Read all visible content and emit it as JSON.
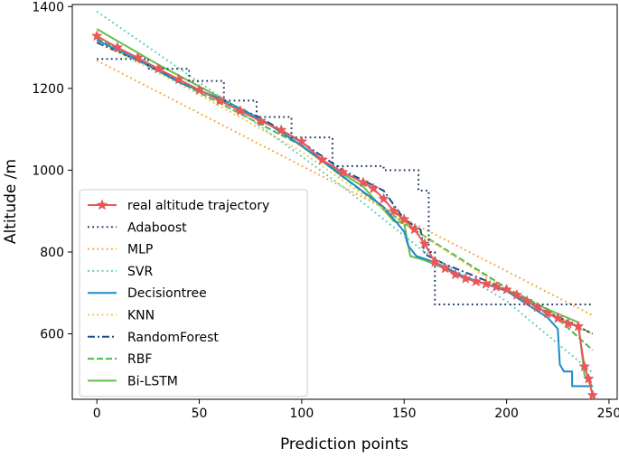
{
  "chart_data": {
    "type": "line",
    "title": "",
    "xlabel": "Prediction points",
    "ylabel": "Altitude /m",
    "xlim": [
      -12,
      254
    ],
    "ylim": [
      440,
      1405
    ],
    "xticks": [
      0,
      50,
      100,
      150,
      200,
      250
    ],
    "yticks": [
      600,
      800,
      1000,
      1200,
      1400
    ],
    "grid": false,
    "legend_position": "lower-left",
    "series": [
      {
        "name": "real altitude trajectory",
        "color": "#e8575a",
        "style": "solid-star",
        "points": [
          [
            0,
            1328
          ],
          [
            10,
            1300
          ],
          [
            20,
            1275
          ],
          [
            30,
            1248
          ],
          [
            40,
            1222
          ],
          [
            50,
            1196
          ],
          [
            60,
            1170
          ],
          [
            70,
            1145
          ],
          [
            80,
            1120
          ],
          [
            90,
            1098
          ],
          [
            100,
            1070
          ],
          [
            110,
            1025
          ],
          [
            120,
            995
          ],
          [
            130,
            970
          ],
          [
            135,
            955
          ],
          [
            140,
            930
          ],
          [
            145,
            900
          ],
          [
            150,
            880
          ],
          [
            155,
            855
          ],
          [
            160,
            820
          ],
          [
            165,
            775
          ],
          [
            170,
            760
          ],
          [
            175,
            745
          ],
          [
            180,
            735
          ],
          [
            185,
            728
          ],
          [
            190,
            722
          ],
          [
            195,
            715
          ],
          [
            200,
            708
          ],
          [
            205,
            695
          ],
          [
            210,
            680
          ],
          [
            215,
            665
          ],
          [
            220,
            650
          ],
          [
            225,
            638
          ],
          [
            230,
            625
          ],
          [
            235,
            618
          ],
          [
            238,
            520
          ],
          [
            240,
            490
          ],
          [
            242,
            450
          ]
        ]
      },
      {
        "name": "Adaboost",
        "color": "#1f3c63",
        "style": "dotted",
        "points": [
          [
            0,
            1272
          ],
          [
            25,
            1272
          ],
          [
            25,
            1248
          ],
          [
            45,
            1248
          ],
          [
            45,
            1218
          ],
          [
            62,
            1218
          ],
          [
            62,
            1170
          ],
          [
            78,
            1170
          ],
          [
            78,
            1130
          ],
          [
            95,
            1130
          ],
          [
            95,
            1080
          ],
          [
            115,
            1080
          ],
          [
            115,
            1010
          ],
          [
            140,
            1010
          ],
          [
            140,
            1000
          ],
          [
            157,
            1000
          ],
          [
            157,
            950
          ],
          [
            162,
            950
          ],
          [
            162,
            800
          ],
          [
            165,
            800
          ],
          [
            165,
            672
          ],
          [
            242,
            672
          ]
        ]
      },
      {
        "name": "MLP",
        "color": "#f7a534",
        "style": "dotted",
        "points": [
          [
            0,
            1268
          ],
          [
            242,
            645
          ]
        ]
      },
      {
        "name": "SVR",
        "color": "#5ecbb9",
        "style": "dotted",
        "points": [
          [
            0,
            1388
          ],
          [
            60,
            1180
          ],
          [
            120,
            960
          ],
          [
            160,
            800
          ],
          [
            200,
            680
          ],
          [
            242,
            505
          ]
        ]
      },
      {
        "name": "Decisiontree",
        "color": "#1c8ac9",
        "style": "solid",
        "points": [
          [
            0,
            1318
          ],
          [
            20,
            1270
          ],
          [
            40,
            1215
          ],
          [
            60,
            1175
          ],
          [
            80,
            1125
          ],
          [
            100,
            1060
          ],
          [
            120,
            985
          ],
          [
            140,
            910
          ],
          [
            150,
            850
          ],
          [
            152,
            815
          ],
          [
            156,
            790
          ],
          [
            165,
            775
          ],
          [
            180,
            738
          ],
          [
            200,
            705
          ],
          [
            210,
            672
          ],
          [
            220,
            640
          ],
          [
            225,
            612
          ],
          [
            226,
            525
          ],
          [
            228,
            508
          ],
          [
            232,
            508
          ],
          [
            232,
            472
          ],
          [
            242,
            472
          ]
        ]
      },
      {
        "name": "KNN",
        "color": "#f6c33e",
        "style": "dotted",
        "points": [
          [
            0,
            1316
          ],
          [
            50,
            1185
          ],
          [
            100,
            1045
          ],
          [
            150,
            870
          ],
          [
            200,
            705
          ],
          [
            242,
            600
          ]
        ]
      },
      {
        "name": "RandomForest",
        "color": "#1d4e86",
        "style": "dashdot",
        "points": [
          [
            0,
            1312
          ],
          [
            20,
            1268
          ],
          [
            40,
            1220
          ],
          [
            60,
            1172
          ],
          [
            80,
            1128
          ],
          [
            100,
            1068
          ],
          [
            120,
            1000
          ],
          [
            140,
            950
          ],
          [
            150,
            880
          ],
          [
            158,
            855
          ],
          [
            160,
            795
          ],
          [
            170,
            770
          ],
          [
            190,
            730
          ],
          [
            200,
            708
          ],
          [
            215,
            665
          ],
          [
            230,
            630
          ],
          [
            242,
            600
          ]
        ]
      },
      {
        "name": "RBF",
        "color": "#48b749",
        "style": "dashed",
        "points": [
          [
            0,
            1322
          ],
          [
            50,
            1190
          ],
          [
            100,
            1060
          ],
          [
            150,
            870
          ],
          [
            200,
            712
          ],
          [
            220,
            660
          ],
          [
            242,
            560
          ]
        ]
      },
      {
        "name": "Bi-LSTM",
        "color": "#62c04a",
        "style": "solid",
        "points": [
          [
            0,
            1345
          ],
          [
            30,
            1258
          ],
          [
            60,
            1178
          ],
          [
            90,
            1095
          ],
          [
            110,
            1022
          ],
          [
            130,
            960
          ],
          [
            145,
            875
          ],
          [
            150,
            870
          ],
          [
            153,
            790
          ],
          [
            160,
            780
          ],
          [
            180,
            738
          ],
          [
            200,
            705
          ],
          [
            220,
            660
          ],
          [
            235,
            628
          ],
          [
            238,
            500
          ],
          [
            242,
            470
          ]
        ]
      }
    ]
  }
}
